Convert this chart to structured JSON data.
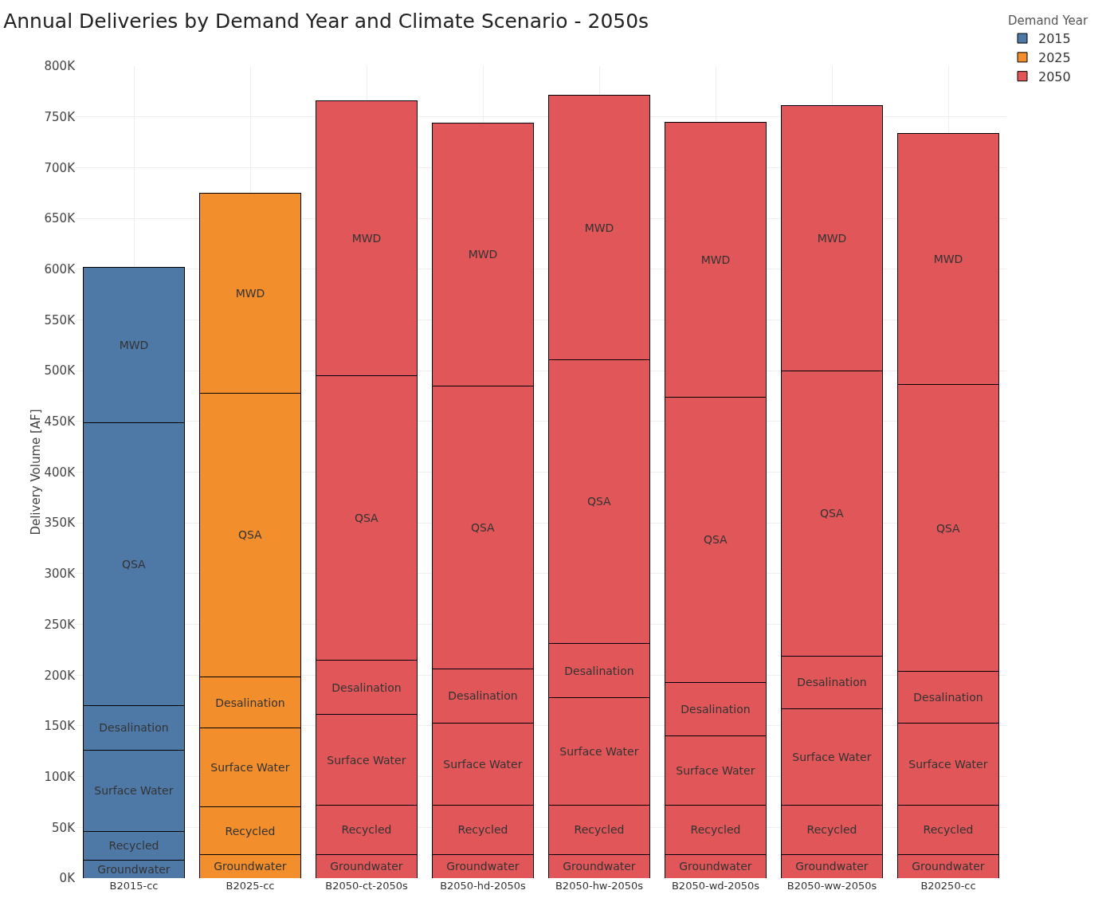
{
  "chart_data": {
    "type": "bar",
    "title": "Annual Deliveries by Demand Year and Climate Scenario - 2050s",
    "ylabel": "Delivery Volume [AF]",
    "legend_title": "Demand Year",
    "stacked": true,
    "grid": true,
    "legend": "top right",
    "categories": [
      "B2015-cc",
      "B2025-cc",
      "B2050-ct-2050s",
      "B2050-hd-2050s",
      "B2050-hw-2050s",
      "B2050-wd-2050s",
      "B2050-ww-2050s",
      "B20250-cc"
    ],
    "ylim": [
      0,
      800000
    ],
    "yticks": [
      {
        "value": 0,
        "label": "0K"
      },
      {
        "value": 50000,
        "label": "50K"
      },
      {
        "value": 100000,
        "label": "100K"
      },
      {
        "value": 150000,
        "label": "150K"
      },
      {
        "value": 200000,
        "label": "200K"
      },
      {
        "value": 250000,
        "label": "250K"
      },
      {
        "value": 300000,
        "label": "300K"
      },
      {
        "value": 350000,
        "label": "350K"
      },
      {
        "value": 400000,
        "label": "400K"
      },
      {
        "value": 450000,
        "label": "450K"
      },
      {
        "value": 500000,
        "label": "500K"
      },
      {
        "value": 550000,
        "label": "550K"
      },
      {
        "value": 600000,
        "label": "600K"
      },
      {
        "value": 650000,
        "label": "650K"
      },
      {
        "value": 700000,
        "label": "700K"
      },
      {
        "value": 750000,
        "label": "750K"
      },
      {
        "value": 800000,
        "label": "800K"
      }
    ],
    "series": [
      {
        "name": "Groundwater",
        "colors": [
          "#4e79a7",
          "#f28e2b",
          "#e15759",
          "#e15759",
          "#e15759",
          "#e15759",
          "#e15759",
          "#e15759"
        ],
        "values": [
          18000,
          23000,
          23000,
          23000,
          23000,
          23000,
          23000,
          23000
        ]
      },
      {
        "name": "Recycled",
        "colors": [
          "#4e79a7",
          "#f28e2b",
          "#e15759",
          "#e15759",
          "#e15759",
          "#e15759",
          "#e15759",
          "#e15759"
        ],
        "values": [
          28000,
          47000,
          49000,
          49000,
          49000,
          49000,
          49000,
          49000
        ]
      },
      {
        "name": "Surface Water",
        "colors": [
          "#4e79a7",
          "#f28e2b",
          "#e15759",
          "#e15759",
          "#e15759",
          "#e15759",
          "#e15759",
          "#e15759"
        ],
        "values": [
          80000,
          78000,
          89000,
          81000,
          106000,
          68000,
          95000,
          81000
        ]
      },
      {
        "name": "Desalination",
        "colors": [
          "#4e79a7",
          "#f28e2b",
          "#e15759",
          "#e15759",
          "#e15759",
          "#e15759",
          "#e15759",
          "#e15759"
        ],
        "values": [
          44000,
          50000,
          54000,
          53000,
          53000,
          53000,
          52000,
          51000
        ]
      },
      {
        "name": "QSA",
        "colors": [
          "#4e79a7",
          "#f28e2b",
          "#e15759",
          "#e15759",
          "#e15759",
          "#e15759",
          "#e15759",
          "#e15759"
        ],
        "values": [
          279000,
          280000,
          280000,
          279000,
          280000,
          281000,
          281000,
          282000
        ]
      },
      {
        "name": "MWD",
        "colors": [
          "#4e79a7",
          "#f28e2b",
          "#e15759",
          "#e15759",
          "#e15759",
          "#e15759",
          "#e15759",
          "#e15759"
        ],
        "values": [
          153000,
          197000,
          271000,
          259000,
          260000,
          271000,
          261000,
          248000
        ]
      },
      {
        "name": "2015",
        "color": "#4e79a7",
        "values": [
          null,
          null,
          null,
          null,
          null,
          null,
          null,
          null
        ]
      },
      {
        "name": "2025",
        "color": "#f28e2b",
        "values": [
          null,
          null,
          null,
          null,
          null,
          null,
          null,
          null
        ]
      },
      {
        "name": "2050",
        "color": "#e15759",
        "values": [
          null,
          null,
          null,
          null,
          null,
          null,
          null,
          null
        ]
      }
    ]
  }
}
